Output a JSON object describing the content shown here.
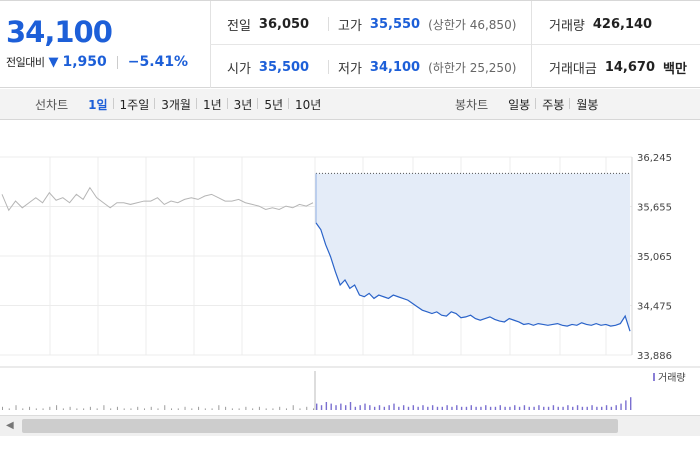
{
  "quote": {
    "price": "34,100",
    "change_label": "전일대비",
    "change_arrow": "▼",
    "change_value": "1,950",
    "change_percent": "−5.41%"
  },
  "info": {
    "prev_close_label": "전일",
    "prev_close": "36,050",
    "high_label": "고가",
    "high": "35,550",
    "upper_limit": "(상한가 46,850)",
    "volume_label": "거래량",
    "volume": "426,140",
    "open_label": "시가",
    "open": "35,500",
    "low_label": "저가",
    "low": "34,100",
    "lower_limit": "(하한가 25,250)",
    "amount_label": "거래대금",
    "amount": "14,670",
    "amount_unit": "백만"
  },
  "tabs": {
    "line_label": "선차트",
    "line_tabs": [
      "1일",
      "1주일",
      "3개월",
      "1년",
      "3년",
      "5년",
      "10년"
    ],
    "active_line_tab": "1일",
    "candle_label": "봉차트",
    "candle_tabs": [
      "일봉",
      "주봉",
      "월봉"
    ]
  },
  "chart_data": {
    "type": "line",
    "y_ticks": [
      "36,245",
      "35,655",
      "35,065",
      "34,475",
      "33,886"
    ],
    "ylim": [
      33886,
      36245
    ],
    "reference_price": 36050,
    "volume_legend": "거래량",
    "colors": {
      "prev_day": "#b5b5b5",
      "today": "#2a63c9",
      "fill": "#e4ecf8",
      "reference": "#555555"
    },
    "prev_day_series": [
      35800,
      35610,
      35720,
      35640,
      35700,
      35760,
      35700,
      35820,
      35730,
      35760,
      35700,
      35800,
      35740,
      35880,
      35760,
      35700,
      35640,
      35700,
      35700,
      35680,
      35700,
      35720,
      35720,
      35760,
      35680,
      35720,
      35700,
      35740,
      35760,
      35740,
      35780,
      35800,
      35760,
      35720,
      35720,
      35740,
      35700,
      35680,
      35660,
      35620,
      35640,
      35620,
      35660,
      35640,
      35680,
      35660,
      35700
    ],
    "today_series": [
      35460,
      35380,
      35200,
      35060,
      34880,
      34720,
      34780,
      34680,
      34720,
      34600,
      34580,
      34620,
      34560,
      34600,
      34580,
      34560,
      34600,
      34580,
      34560,
      34540,
      34500,
      34460,
      34420,
      34400,
      34380,
      34400,
      34360,
      34350,
      34400,
      34380,
      34330,
      34340,
      34360,
      34320,
      34300,
      34320,
      34340,
      34310,
      34290,
      34280,
      34320,
      34300,
      34280,
      34250,
      34260,
      34240,
      34260,
      34250,
      34240,
      34250,
      34260,
      34240,
      34230,
      34250,
      34240,
      34270,
      34250,
      34240,
      34260,
      34240,
      34250,
      34230,
      34240,
      34260,
      34350,
      34170
    ],
    "volume_prev": [
      2,
      1,
      3,
      1,
      2,
      1,
      1,
      2,
      3,
      1,
      2,
      1,
      1,
      2,
      1,
      3,
      1,
      2,
      1,
      1,
      2,
      1,
      2,
      1,
      3,
      1,
      1,
      2,
      1,
      2,
      1,
      1,
      3,
      2,
      1,
      1,
      2,
      1,
      2,
      1,
      1,
      2,
      1,
      3,
      1,
      2,
      1
    ],
    "volume_today": [
      4,
      3,
      5,
      4,
      3,
      4,
      3,
      5,
      2,
      3,
      4,
      3,
      2,
      3,
      2,
      3,
      4,
      2,
      3,
      2,
      3,
      2,
      3,
      2,
      3,
      2,
      2,
      3,
      2,
      3,
      2,
      2,
      3,
      2,
      2,
      3,
      2,
      2,
      3,
      2,
      2,
      3,
      2,
      3,
      2,
      2,
      3,
      2,
      2,
      3,
      2,
      2,
      3,
      2,
      3,
      2,
      2,
      3,
      2,
      2,
      3,
      2,
      3,
      4,
      6,
      8
    ]
  }
}
